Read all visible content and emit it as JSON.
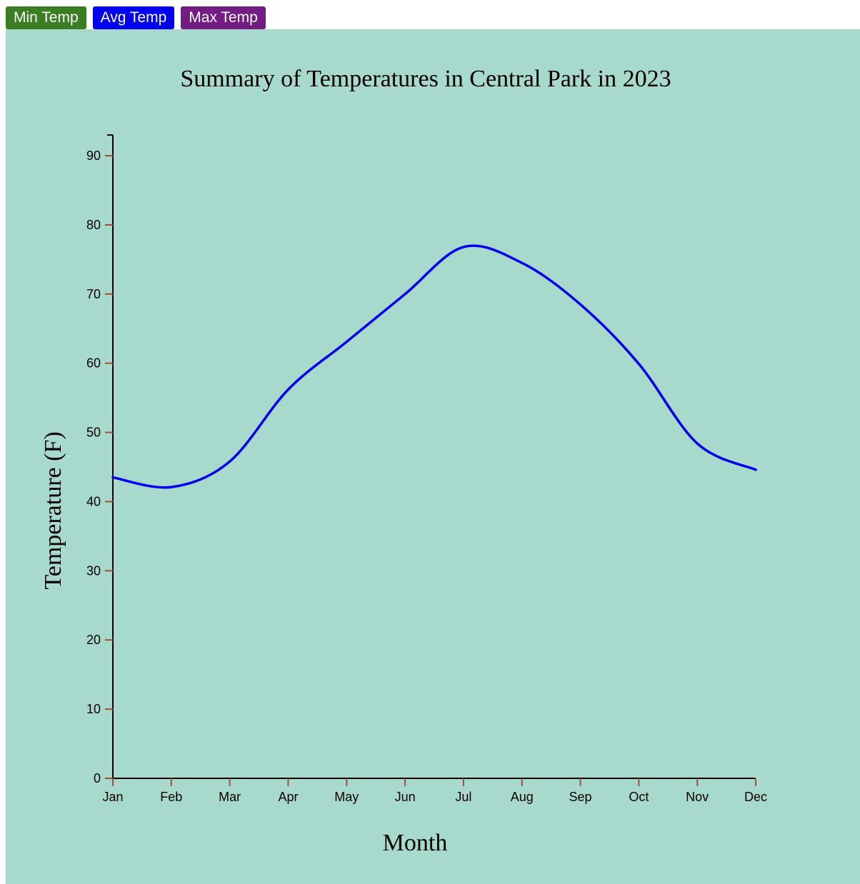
{
  "buttons": [
    {
      "label": "Min Temp",
      "color": "#3a7d22"
    },
    {
      "label": "Avg Temp",
      "color": "#0000ee"
    },
    {
      "label": "Max Temp",
      "color": "#741b84"
    }
  ],
  "chart_data": {
    "type": "line",
    "title": "Summary of Temperatures in Central Park in 2023",
    "xlabel": "Month",
    "ylabel": "Temperature (F)",
    "categories": [
      "Jan",
      "Feb",
      "Mar",
      "Apr",
      "May",
      "Jun",
      "Jul",
      "Aug",
      "Sep",
      "Oct",
      "Nov",
      "Dec"
    ],
    "series": [
      {
        "values": [
          43.5,
          42.1,
          45.8,
          56.2,
          63.1,
          70.0,
          76.8,
          74.5,
          68.5,
          59.9,
          48.4,
          44.6
        ],
        "color": "#0000ee"
      }
    ],
    "yticks": [
      0,
      10,
      20,
      30,
      40,
      50,
      60,
      70,
      80,
      90
    ],
    "ylim": [
      0,
      93
    ],
    "background": "#a7d9cd",
    "tick_color": "#a0522d",
    "grid": false
  }
}
